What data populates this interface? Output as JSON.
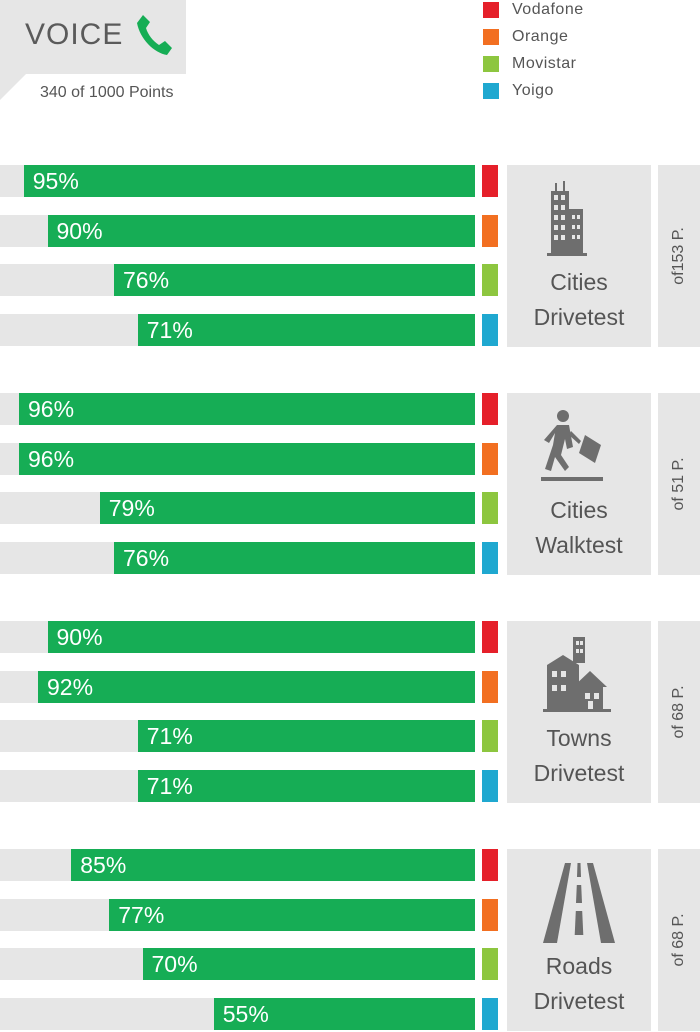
{
  "header": {
    "title": "VOICE",
    "points": "340 of 1000 Points",
    "icon": "phone-icon"
  },
  "colors": {
    "bar": "#16ad55",
    "background_bar": "#e6e6e6",
    "panel": "#e6e6e6"
  },
  "legend": [
    {
      "name": "Vodafone",
      "color": "#e5202a"
    },
    {
      "name": "Orange",
      "color": "#f26f21"
    },
    {
      "name": "Movistar",
      "color": "#8dc63f"
    },
    {
      "name": "Yoigo",
      "color": "#1fa8d0"
    }
  ],
  "chart_data": {
    "type": "bar",
    "orientation": "horizontal",
    "unit": "%",
    "xlim": [
      0,
      100
    ],
    "legend_position": "top-right",
    "series": [
      "Vodafone",
      "Orange",
      "Movistar",
      "Yoigo"
    ],
    "groups": [
      {
        "category": [
          "Cities",
          "Drivetest"
        ],
        "max_points": "of153 P.",
        "icon": "city-buildings-icon",
        "values": [
          95,
          90,
          76,
          71
        ],
        "labels": [
          "95%",
          "90%",
          "76%",
          "71%"
        ]
      },
      {
        "category": [
          "Cities",
          "Walktest"
        ],
        "max_points": "of 51 P.",
        "icon": "walking-person-icon",
        "values": [
          96,
          96,
          79,
          76
        ],
        "labels": [
          "96%",
          "96%",
          "79%",
          "76%"
        ]
      },
      {
        "category": [
          "Towns",
          "Drivetest"
        ],
        "max_points": "of 68 P.",
        "icon": "town-houses-icon",
        "values": [
          90,
          92,
          71,
          71
        ],
        "labels": [
          "90%",
          "92%",
          "71%",
          "71%"
        ]
      },
      {
        "category": [
          "Roads",
          "Drivetest"
        ],
        "max_points": "of 68 P.",
        "icon": "road-icon",
        "values": [
          85,
          77,
          70,
          55
        ],
        "labels": [
          "85%",
          "77%",
          "70%",
          "55%"
        ]
      }
    ]
  }
}
